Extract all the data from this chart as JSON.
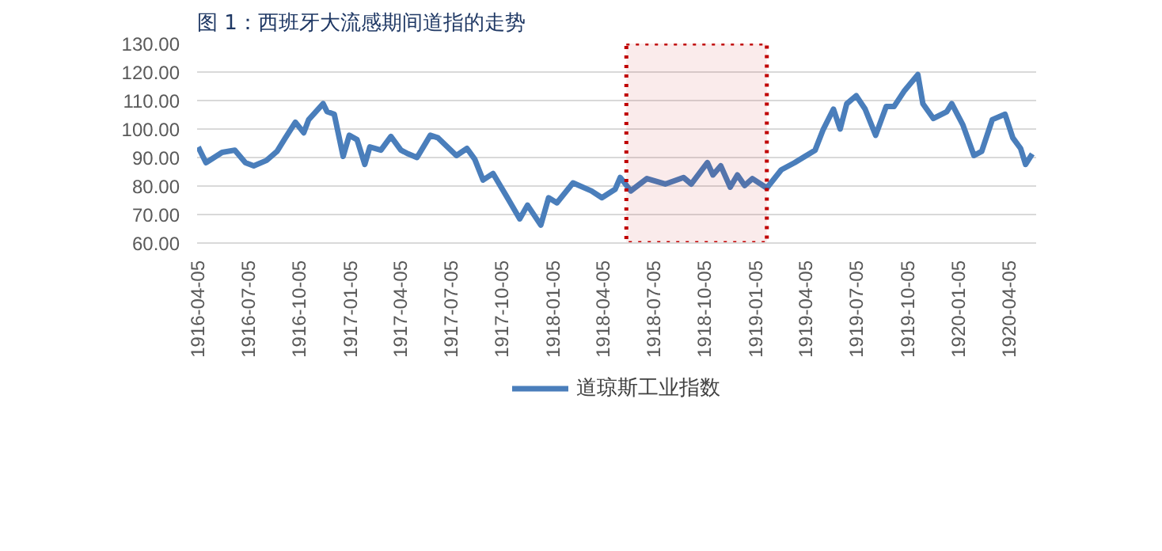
{
  "chart_data": {
    "type": "line",
    "title": "图 1：西班牙大流感期间道指的走势",
    "x": [
      "1916-04-07",
      "1916-04-21",
      "1916-05-20",
      "1916-06-12",
      "1916-07-01",
      "1916-07-16",
      "1916-08-08",
      "1916-08-27",
      "1916-09-11",
      "1916-09-29",
      "1916-10-14",
      "1916-10-23",
      "1916-11-18",
      "1916-11-25",
      "1916-12-08",
      "1916-12-24",
      "1917-01-04",
      "1917-01-18",
      "1917-02-01",
      "1917-02-10",
      "1917-03-02",
      "1917-03-20",
      "1917-04-07",
      "1917-04-20",
      "1917-05-06",
      "1917-05-30",
      "1917-06-13",
      "1917-07-16",
      "1917-08-04",
      "1917-08-18",
      "1917-09-02",
      "1917-09-20",
      "1917-10-14",
      "1917-11-07",
      "1917-11-21",
      "1917-12-15",
      "1917-12-29",
      "1918-01-13",
      "1918-02-11",
      "1918-03-16",
      "1918-04-04",
      "1918-04-28",
      "1918-05-07",
      "1918-05-26",
      "1918-06-24",
      "1918-07-27",
      "1918-08-29",
      "1918-09-12",
      "1918-10-11",
      "1918-10-21",
      "1918-11-04",
      "1918-11-21",
      "1918-12-04",
      "1918-12-17",
      "1918-12-31",
      "1919-01-26",
      "1919-02-21",
      "1919-03-17",
      "1919-04-23",
      "1919-05-07",
      "1919-05-26",
      "1919-06-07",
      "1919-06-19",
      "1919-07-06",
      "1919-07-22",
      "1919-08-10",
      "1919-08-29",
      "1919-09-12",
      "1919-10-01",
      "1919-10-25",
      "1919-11-03",
      "1919-11-22",
      "1919-12-16",
      "1919-12-25",
      "1920-01-14",
      "1920-02-03",
      "1920-02-17",
      "1920-03-07",
      "1920-03-30",
      "1920-04-13",
      "1920-04-27",
      "1920-05-06",
      "1920-05-18"
    ],
    "series": [
      {
        "name": "道琼斯工业指数",
        "color": "#4a7ebb",
        "values": [
          93.7,
          88.2,
          91.8,
          92.6,
          88.2,
          87.1,
          89,
          92.2,
          96.9,
          102.4,
          98.7,
          103.3,
          108.9,
          106.1,
          105.2,
          90.4,
          97.8,
          96.3,
          87.6,
          93.7,
          92.6,
          97.4,
          92.6,
          91.3,
          90,
          97.8,
          96.9,
          90.7,
          93.2,
          89.4,
          82.1,
          84.4,
          76.5,
          68.5,
          73.3,
          66.3,
          75.9,
          74.1,
          81.1,
          78.3,
          75.9,
          78.9,
          83,
          78.3,
          82.6,
          80.7,
          83,
          80.7,
          88.2,
          83.9,
          87.1,
          79.6,
          83.9,
          80.2,
          82.6,
          79.3,
          85.7,
          88.2,
          92.6,
          99.6,
          107,
          100,
          108.9,
          111.7,
          107,
          97.8,
          107.9,
          107.9,
          113.5,
          119.1,
          108.9,
          103.7,
          106.1,
          108.9,
          101.5,
          90.7,
          92.2,
          103.3,
          105.2,
          96.9,
          93.2,
          87.6,
          91.3
        ]
      }
    ],
    "xlim": [
      "1916-04-05",
      "1920-05-25"
    ],
    "xticks": [
      "1916-04-05",
      "1916-07-05",
      "1916-10-05",
      "1917-01-05",
      "1917-04-05",
      "1917-07-05",
      "1917-10-05",
      "1918-01-05",
      "1918-04-05",
      "1918-07-05",
      "1918-10-05",
      "1919-01-05",
      "1919-04-05",
      "1919-07-05",
      "1919-10-05",
      "1920-01-05",
      "1920-04-05"
    ],
    "ylim": [
      60,
      130
    ],
    "yticks": [
      {
        "value": 60,
        "label": "60.00"
      },
      {
        "value": 70,
        "label": "70.00"
      },
      {
        "value": 80,
        "label": "80.00"
      },
      {
        "value": 90,
        "label": "90.00"
      },
      {
        "value": 100,
        "label": "100.00"
      },
      {
        "value": 110,
        "label": "110.00"
      },
      {
        "value": 120,
        "label": "120.00"
      },
      {
        "value": 130,
        "label": "130.00"
      }
    ],
    "bands": [
      {
        "axis": "x",
        "from": "1918-05-18",
        "to": "1919-01-26",
        "color": "#c00000"
      }
    ],
    "grid": "y",
    "legend": "bottom",
    "marker": "none",
    "line_style": "solid"
  }
}
